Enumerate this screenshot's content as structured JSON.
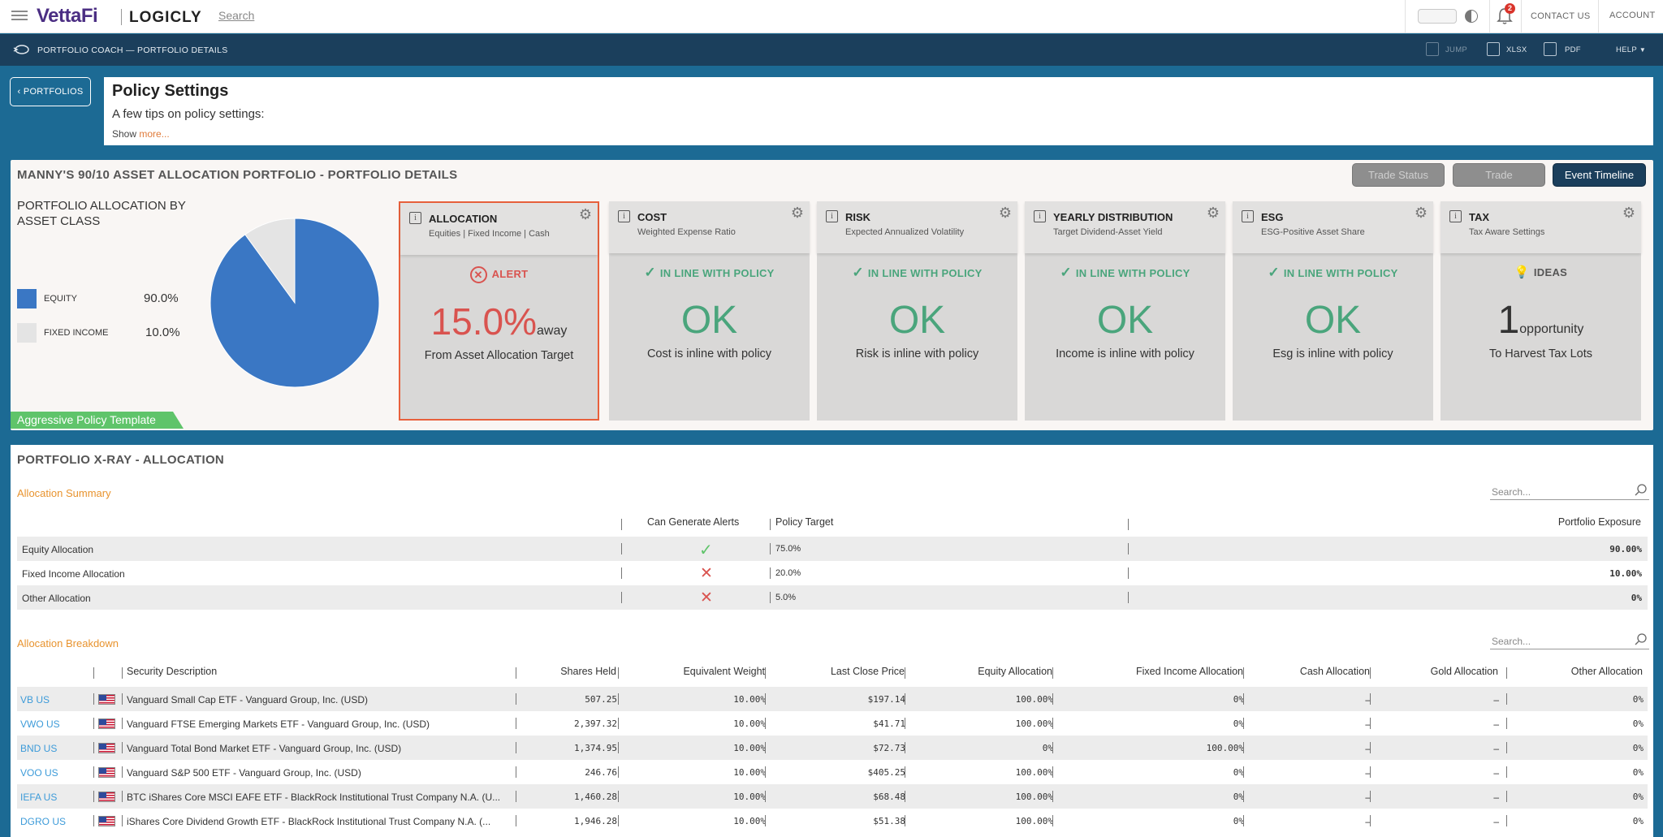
{
  "topbar": {
    "logo_brand": "VettaFi",
    "logo_product": "LOGICLY",
    "search_label": "Search",
    "notification_count": "2",
    "contact_label": "CONTACT US",
    "account_label": "ACCOUNT"
  },
  "subbar": {
    "title": "PORTFOLIO COACH — PORTFOLIO DETAILS",
    "jump_label": "JUMP",
    "xlsx_label": "XLSX",
    "pdf_label": "PDF",
    "help_label": "HELP"
  },
  "back_button": "PORTFOLIOS",
  "policy": {
    "title": "Policy Settings",
    "tip": "A few tips on policy settings:",
    "show_label": "Show",
    "more_label": "more..."
  },
  "details": {
    "title": "MANNY'S 90/10 ASSET ALLOCATION PORTFOLIO - PORTFOLIO DETAILS",
    "btn_trade_status": "Trade Status",
    "btn_trade": "Trade",
    "btn_event_timeline": "Event Timeline",
    "alloc_title": "PORTFOLIO ALLOCATION BY ASSET CLASS",
    "policy_template": "Aggressive Policy Template",
    "legend": [
      {
        "label": "EQUITY",
        "value": "90.0%",
        "color": "#3a77c4"
      },
      {
        "label": "FIXED INCOME",
        "value": "10.0%",
        "color": "#e4e4e4"
      }
    ],
    "cards": [
      {
        "title": "ALLOCATION",
        "sub": "Equities | Fixed Income | Cash",
        "status": "ALERT",
        "big": "15.0%",
        "big_suffix": "away",
        "desc": "From Asset Allocation Target"
      },
      {
        "title": "COST",
        "sub": "Weighted Expense Ratio",
        "status": "IN LINE WITH POLICY",
        "big": "OK",
        "desc": "Cost is inline with policy"
      },
      {
        "title": "RISK",
        "sub": "Expected Annualized Volatility",
        "status": "IN LINE WITH POLICY",
        "big": "OK",
        "desc": "Risk is inline with policy"
      },
      {
        "title": "YEARLY DISTRIBUTION",
        "sub": "Target Dividend-Asset Yield",
        "status": "IN LINE WITH POLICY",
        "big": "OK",
        "desc": "Income is inline with policy"
      },
      {
        "title": "ESG",
        "sub": "ESG-Positive Asset Share",
        "status": "IN LINE WITH POLICY",
        "big": "OK",
        "desc": "Esg is inline with policy"
      },
      {
        "title": "TAX",
        "sub": "Tax Aware Settings",
        "status": "IDEAS",
        "big": "1",
        "big_suffix": "opportunity",
        "desc": "To Harvest Tax Lots"
      }
    ]
  },
  "chart_data": {
    "type": "pie",
    "categories": [
      "EQUITY",
      "FIXED INCOME"
    ],
    "values": [
      90.0,
      10.0
    ],
    "colors": [
      "#3a77c4",
      "#e4e4e4"
    ],
    "title": "PORTFOLIO ALLOCATION BY ASSET CLASS"
  },
  "xray": {
    "title": "PORTFOLIO X-RAY - ALLOCATION",
    "summary_heading": "Allocation Summary",
    "search_placeholder": "Search...",
    "summary_headers": [
      "Can Generate Alerts",
      "Policy Target",
      "Portfolio Exposure"
    ],
    "summary_rows": [
      {
        "name": "Equity Allocation",
        "alerts": "check",
        "target": "75.0%",
        "exposure": "90.00%"
      },
      {
        "name": "Fixed Income Allocation",
        "alerts": "x",
        "target": "20.0%",
        "exposure": "10.00%"
      },
      {
        "name": "Other Allocation",
        "alerts": "x",
        "target": "5.0%",
        "exposure": "0%"
      }
    ],
    "breakdown_heading": "Allocation Breakdown",
    "breakdown_headers": [
      "Security Description",
      "Shares Held",
      "Equivalent Weight",
      "Last Close Price",
      "Equity Allocation",
      "Fixed Income Allocation",
      "Cash Allocation",
      "Gold Allocation",
      "Other Allocation"
    ],
    "breakdown_rows": [
      {
        "ticker": "VB US",
        "desc": "Vanguard Small Cap ETF - Vanguard Group, Inc. (USD)",
        "shares": "507.25",
        "weight": "10.00%",
        "price": "$197.14",
        "equity": "100.00%",
        "fixed": "0%",
        "cash": "–",
        "gold": "–",
        "other": "0%"
      },
      {
        "ticker": "VWO US",
        "desc": "Vanguard FTSE Emerging Markets ETF - Vanguard Group, Inc. (USD)",
        "shares": "2,397.32",
        "weight": "10.00%",
        "price": "$41.71",
        "equity": "100.00%",
        "fixed": "0%",
        "cash": "–",
        "gold": "–",
        "other": "0%"
      },
      {
        "ticker": "BND US",
        "desc": "Vanguard Total Bond Market ETF - Vanguard Group, Inc. (USD)",
        "shares": "1,374.95",
        "weight": "10.00%",
        "price": "$72.73",
        "equity": "0%",
        "fixed": "100.00%",
        "cash": "–",
        "gold": "–",
        "other": "0%"
      },
      {
        "ticker": "VOO US",
        "desc": "Vanguard S&P 500 ETF - Vanguard Group, Inc. (USD)",
        "shares": "246.76",
        "weight": "10.00%",
        "price": "$405.25",
        "equity": "100.00%",
        "fixed": "0%",
        "cash": "–",
        "gold": "–",
        "other": "0%"
      },
      {
        "ticker": "IEFA US",
        "desc": "BTC iShares Core MSCI EAFE ETF - BlackRock Institutional Trust Company N.A. (U...",
        "shares": "1,460.28",
        "weight": "10.00%",
        "price": "$68.48",
        "equity": "100.00%",
        "fixed": "0%",
        "cash": "–",
        "gold": "–",
        "other": "0%"
      },
      {
        "ticker": "DGRO US",
        "desc": "iShares Core Dividend Growth ETF - BlackRock Institutional Trust Company N.A. (...",
        "shares": "1,946.28",
        "weight": "10.00%",
        "price": "$51.38",
        "equity": "100.00%",
        "fixed": "0%",
        "cash": "–",
        "gold": "–",
        "other": "0%"
      }
    ]
  },
  "colors": {
    "brand": "#4b2e83",
    "alert": "#d9534f",
    "ok": "#4aa57c",
    "link": "#3d9bd9",
    "orange": "#e8932e"
  }
}
